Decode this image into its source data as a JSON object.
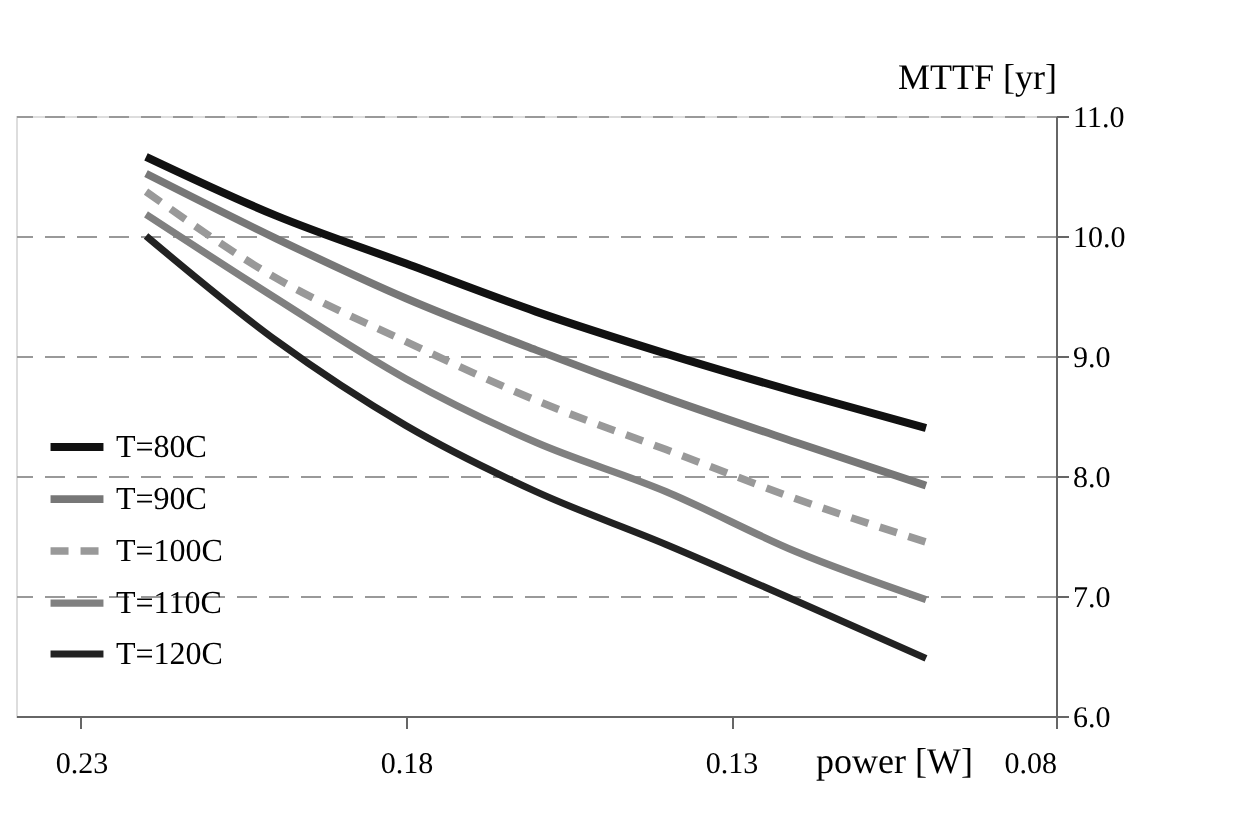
{
  "chart_data": {
    "type": "line",
    "xlabel": "power [W]",
    "ylabel": "MTTF [yr]",
    "x": [
      0.22,
      0.2,
      0.18,
      0.16,
      0.14,
      0.12,
      0.1
    ],
    "series": [
      {
        "name": "T=80C",
        "color": "#111111",
        "line_style": "solid",
        "values": [
          10.66,
          10.17,
          9.77,
          9.37,
          9.02,
          8.7,
          8.4
        ]
      },
      {
        "name": "T=90C",
        "color": "#777777",
        "line_style": "solid",
        "values": [
          10.52,
          9.98,
          9.48,
          9.05,
          8.65,
          8.28,
          7.92
        ]
      },
      {
        "name": "T=100C",
        "color": "#999999",
        "line_style": "dashed",
        "values": [
          10.37,
          9.65,
          9.12,
          8.63,
          8.22,
          7.81,
          7.45
        ]
      },
      {
        "name": "T=110C",
        "color": "#808080",
        "line_style": "solid",
        "values": [
          10.18,
          9.48,
          8.81,
          8.28,
          7.87,
          7.37,
          6.97
        ]
      },
      {
        "name": "T=120C",
        "color": "#222222",
        "line_style": "solid",
        "values": [
          10.0,
          9.13,
          8.42,
          7.87,
          7.43,
          6.96,
          6.48
        ]
      }
    ],
    "xlim": [
      0.24,
      0.08
    ],
    "xticks": [
      0.23,
      0.18,
      0.13,
      0.08
    ],
    "ylim": [
      6,
      11
    ],
    "yticks": [
      {
        "value": 6,
        "label": "6.0"
      },
      {
        "value": 7,
        "label": "7.0"
      },
      {
        "value": 8,
        "label": "8.0"
      },
      {
        "value": 9,
        "label": "9.0"
      },
      {
        "value": 10,
        "label": "10.0"
      },
      {
        "value": 11,
        "label": "11.0"
      }
    ],
    "grid": "y",
    "legend": "left",
    "marker": "none"
  }
}
